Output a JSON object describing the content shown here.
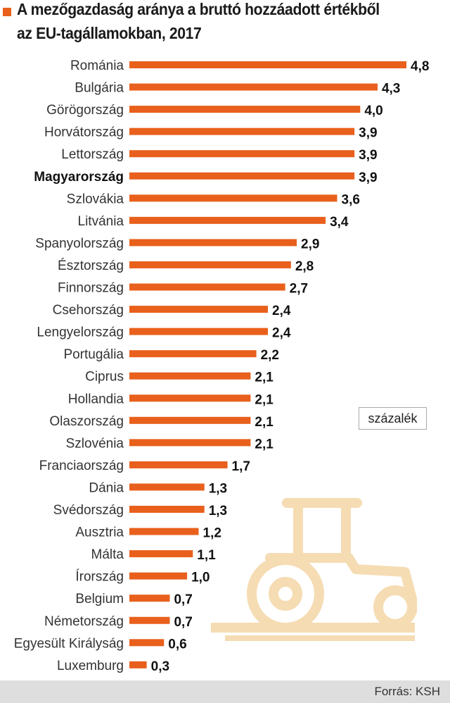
{
  "title": {
    "line1": "A mezőgazdaság aránya a bruttó hozzáadott értékből",
    "line2": "az EU-tagállamokban, 2017"
  },
  "unit_label": "százalék",
  "source": "Forrás: KSH",
  "colors": {
    "bar": "#e8601c",
    "title_marker": "#e8601c",
    "illustration": "#f5dcb3",
    "footer": "#dedede"
  },
  "illustration_icon": "tractor-icon",
  "chart_data": {
    "type": "bar",
    "orientation": "horizontal",
    "categories": [
      "Románia",
      "Bulgária",
      "Görögország",
      "Horvátország",
      "Lettország",
      "Magyarország",
      "Szlovákia",
      "Litvánia",
      "Spanyolország",
      "Észtország",
      "Finnország",
      "Csehország",
      "Lengyelország",
      "Portugália",
      "Ciprus",
      "Hollandia",
      "Olaszország",
      "Szlovénia",
      "Franciaország",
      "Dánia",
      "Svédország",
      "Ausztria",
      "Málta",
      "Írország",
      "Belgium",
      "Németország",
      "Egyesült Királyság",
      "Luxemburg"
    ],
    "values": [
      4.8,
      4.3,
      4.0,
      3.9,
      3.9,
      3.9,
      3.6,
      3.4,
      2.9,
      2.8,
      2.7,
      2.4,
      2.4,
      2.2,
      2.1,
      2.1,
      2.1,
      2.1,
      1.7,
      1.3,
      1.3,
      1.2,
      1.1,
      1.0,
      0.7,
      0.7,
      0.6,
      0.3
    ],
    "value_labels": [
      "4,8",
      "4,3",
      "4,0",
      "3,9",
      "3,9",
      "3,9",
      "3,6",
      "3,4",
      "2,9",
      "2,8",
      "2,7",
      "2,4",
      "2,4",
      "2,2",
      "2,1",
      "2,1",
      "2,1",
      "2,1",
      "1,7",
      "1,3",
      "1,3",
      "1,2",
      "1,1",
      "1,0",
      "0,7",
      "0,7",
      "0,6",
      "0,3"
    ],
    "highlight": "Magyarország",
    "xlim": [
      0,
      4.8
    ],
    "grid": false,
    "legend": "none"
  }
}
